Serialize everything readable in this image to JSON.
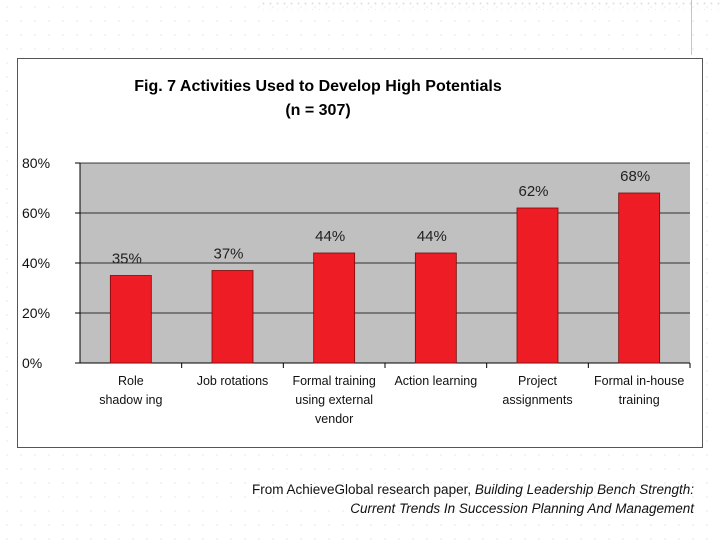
{
  "chart_data": {
    "type": "bar",
    "title": "Fig. 7 Activities Used to Develop High Potentials",
    "subtitle": "(n = 307)",
    "categories": [
      [
        "Role",
        "shadow ing"
      ],
      [
        "Job rotations"
      ],
      [
        "Formal training",
        "using external",
        "vendor"
      ],
      [
        "Action learning"
      ],
      [
        "Project",
        "assignments"
      ],
      [
        "Formal in-house",
        "training"
      ]
    ],
    "values": [
      35,
      37,
      44,
      44,
      62,
      68
    ],
    "value_labels": [
      "35%",
      "37%",
      "44%",
      "44%",
      "62%",
      "68%"
    ],
    "ylim": [
      0,
      80
    ],
    "yticks": [
      0,
      20,
      40,
      60,
      80
    ],
    "ytick_labels": [
      "0%",
      "20%",
      "40%",
      "60%",
      "80%"
    ],
    "grid": true,
    "bar_color": "#ee1c25",
    "plot_background": "#c0c0c0",
    "legend": "none",
    "xlabel": "",
    "ylabel": ""
  },
  "caption": {
    "prefix": "From AchieveGlobal research paper, ",
    "title_part1": "Building Leadership Bench Strength:",
    "title_part2": "Current Trends In Succession Planning And Management"
  }
}
